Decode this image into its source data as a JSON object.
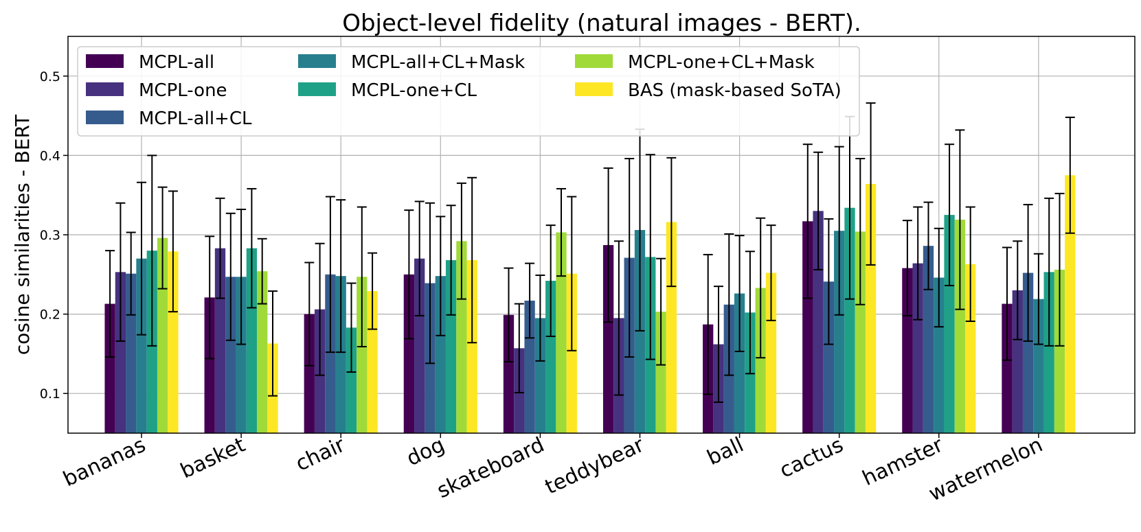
{
  "chart_data": {
    "type": "bar",
    "title": "Object-level fidelity (natural images - BERT).",
    "xlabel": "",
    "ylabel": "cosine similarities - BERT",
    "ylim": [
      0.05,
      0.55
    ],
    "yticks": [
      0.1,
      0.2,
      0.3,
      0.4,
      0.5
    ],
    "ytick_labels": [
      "0.1",
      "0.2",
      "0.3",
      "0.4",
      "0.5"
    ],
    "grid": true,
    "legend_position": "top-left",
    "legend_columns": 3,
    "categories": [
      "bananas",
      "basket",
      "chair",
      "dog",
      "skateboard",
      "teddybear",
      "ball",
      "cactus",
      "hamster",
      "watermelon"
    ],
    "series": [
      {
        "name": "MCPL-all",
        "color": "#440154",
        "values": [
          0.213,
          0.221,
          0.2,
          0.25,
          0.199,
          0.287,
          0.187,
          0.317,
          0.258,
          0.213
        ],
        "errors": [
          0.067,
          0.077,
          0.065,
          0.081,
          0.059,
          0.097,
          0.088,
          0.097,
          0.06,
          0.071
        ]
      },
      {
        "name": "MCPL-one",
        "color": "#46327e",
        "values": [
          0.253,
          0.283,
          0.206,
          0.27,
          0.157,
          0.195,
          0.162,
          0.33,
          0.264,
          0.23
        ],
        "errors": [
          0.087,
          0.063,
          0.083,
          0.072,
          0.056,
          0.097,
          0.073,
          0.074,
          0.071,
          0.062
        ]
      },
      {
        "name": "MCPL-all+CL",
        "color": "#365c8d",
        "values": [
          0.251,
          0.247,
          0.25,
          0.239,
          0.217,
          0.271,
          0.212,
          0.241,
          0.286,
          0.252
        ],
        "errors": [
          0.052,
          0.08,
          0.098,
          0.101,
          0.047,
          0.125,
          0.089,
          0.079,
          0.055,
          0.086
        ]
      },
      {
        "name": "MCPL-all+CL+Mask",
        "color": "#277f8e",
        "values": [
          0.27,
          0.247,
          0.248,
          0.248,
          0.195,
          0.306,
          0.226,
          0.305,
          0.246,
          0.219
        ],
        "errors": [
          0.096,
          0.085,
          0.096,
          0.075,
          0.054,
          0.127,
          0.073,
          0.106,
          0.062,
          0.057
        ]
      },
      {
        "name": "MCPL-one+CL",
        "color": "#1fa187",
        "values": [
          0.28,
          0.283,
          0.183,
          0.268,
          0.242,
          0.272,
          0.202,
          0.334,
          0.325,
          0.253
        ],
        "errors": [
          0.12,
          0.075,
          0.056,
          0.069,
          0.07,
          0.129,
          0.077,
          0.115,
          0.089,
          0.093
        ]
      },
      {
        "name": "MCPL-one+CL+Mask",
        "color": "#a0da39",
        "values": [
          0.296,
          0.254,
          0.247,
          0.292,
          0.303,
          0.203,
          0.233,
          0.304,
          0.319,
          0.256
        ],
        "errors": [
          0.064,
          0.041,
          0.088,
          0.073,
          0.055,
          0.067,
          0.088,
          0.092,
          0.113,
          0.096
        ]
      },
      {
        "name": "BAS (mask-based SoTA)",
        "color": "#fde725",
        "values": [
          0.279,
          0.163,
          0.229,
          0.268,
          0.251,
          0.316,
          0.252,
          0.364,
          0.263,
          0.375
        ],
        "errors": [
          0.076,
          0.066,
          0.048,
          0.104,
          0.097,
          0.081,
          0.06,
          0.102,
          0.072,
          0.073
        ]
      }
    ]
  }
}
